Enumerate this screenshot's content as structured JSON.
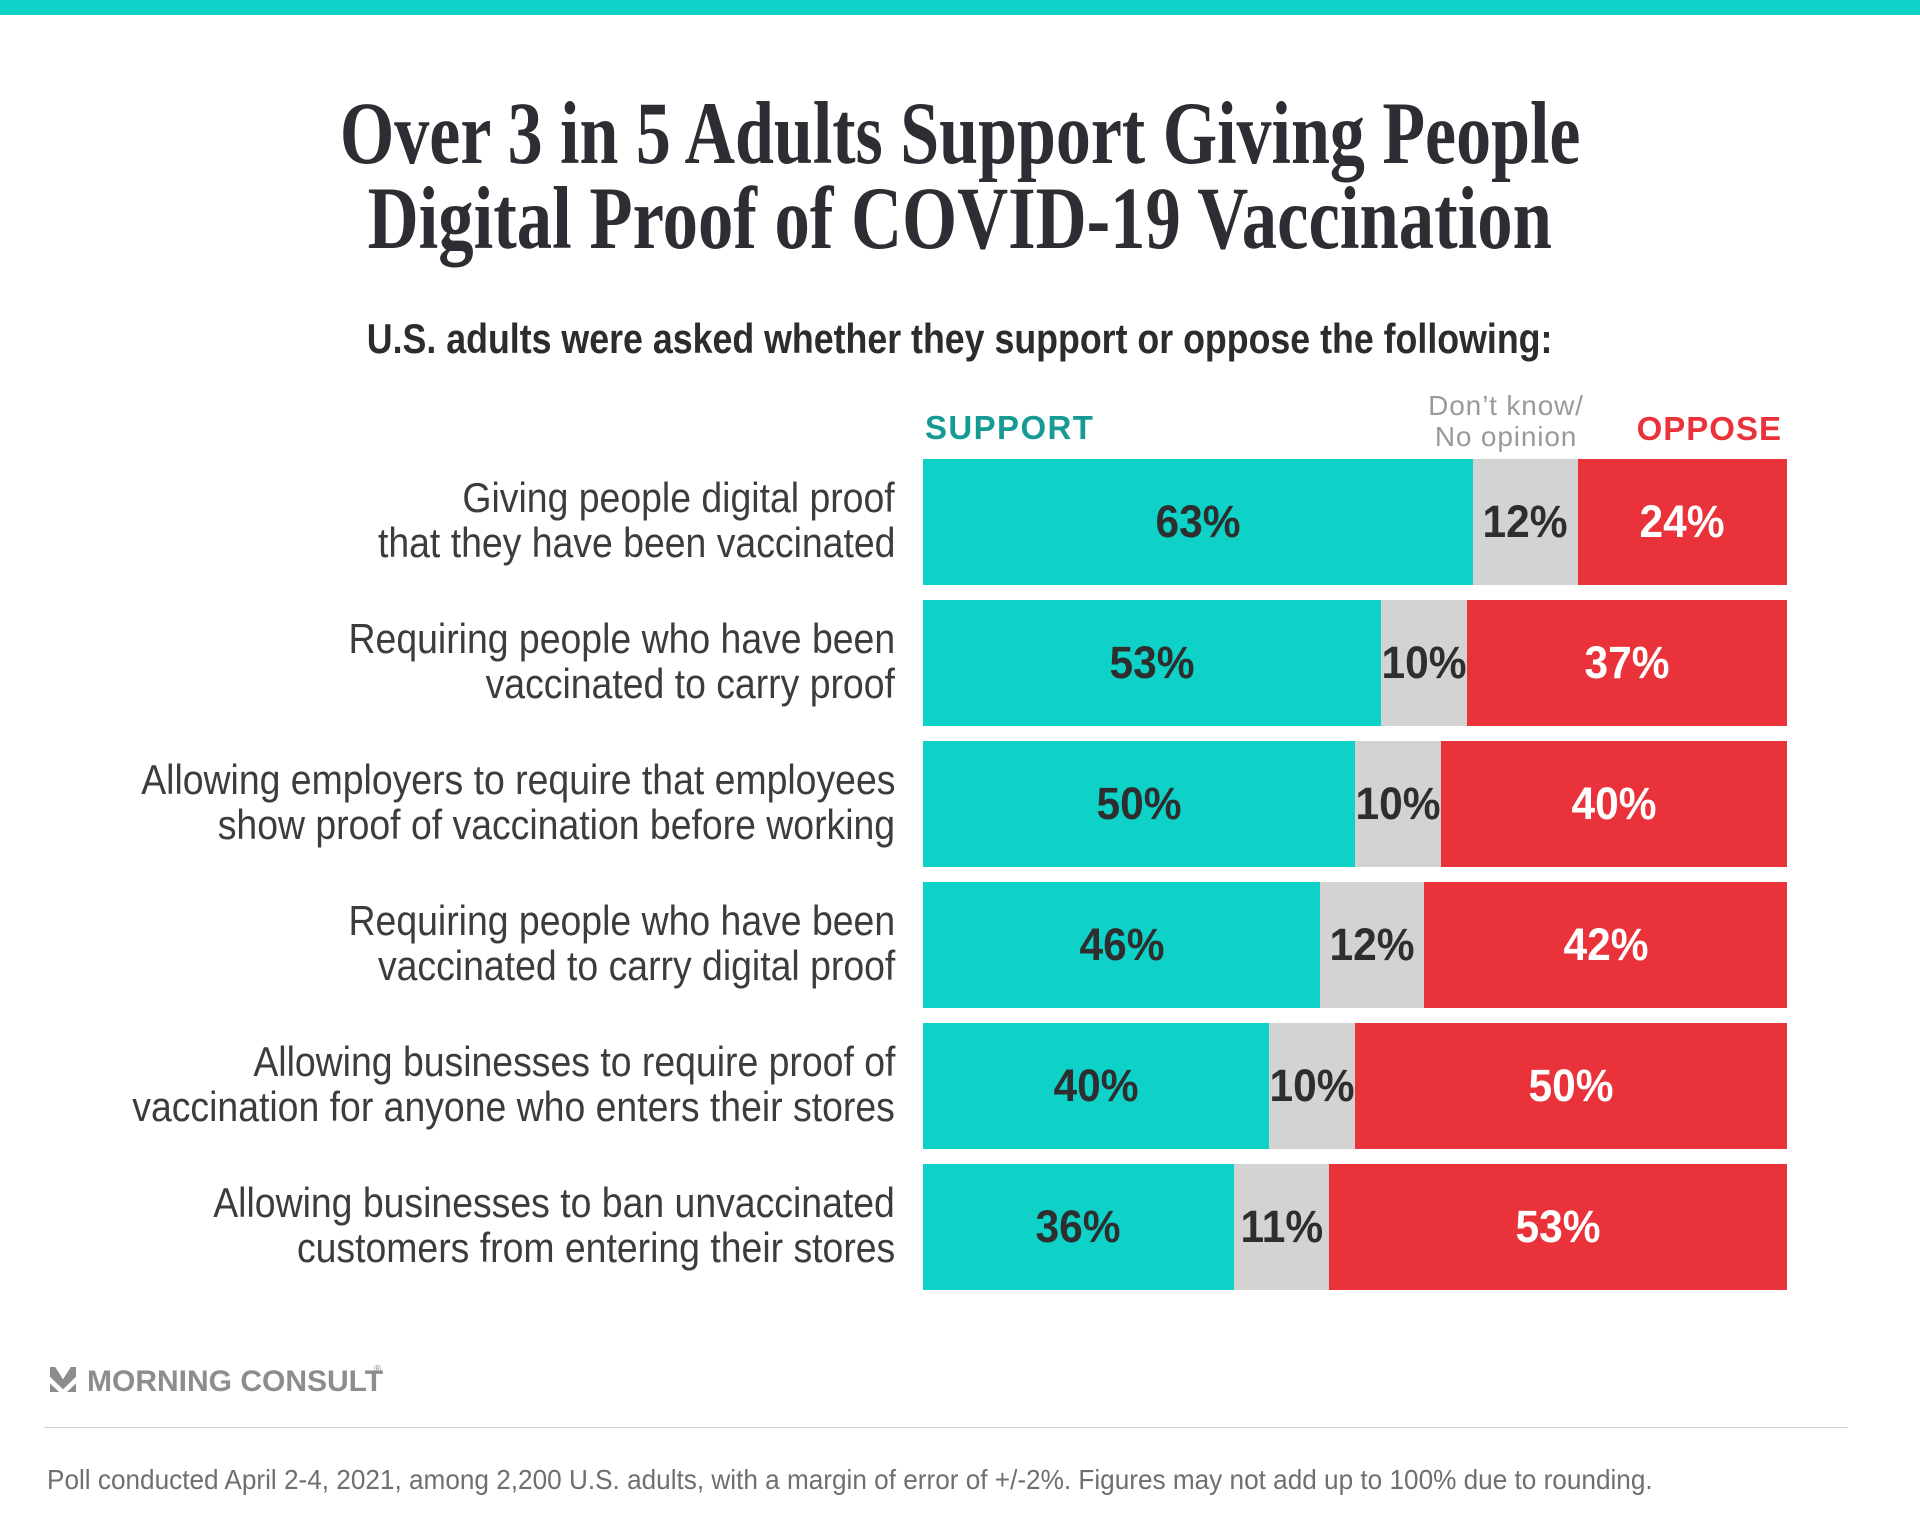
{
  "page": {
    "background": "#FFFFFF"
  },
  "colors": {
    "teal": "#0ED2C8",
    "teal_dark": "#169B94",
    "red": "#E93239",
    "gray": "#D3D3D3",
    "title_text": "#2D2E33",
    "subtitle_text": "#2C2C2E",
    "label_text": "#3C3C3C",
    "value_dark": "#2E2E2E",
    "value_light": "#FFFFFF",
    "dontknow_text": "#9A9A9A",
    "footer_text": "#6F6F6F",
    "logo_gray": "#8D8D8D",
    "divider": "#CDCDCD"
  },
  "header": {
    "title_line1": "Over 3 in 5 Adults Support Giving People",
    "title_line2": "Digital Proof of COVID-19 Vaccination",
    "subtitle": "U.S. adults were asked whether they support or oppose the following:"
  },
  "chart_data": {
    "type": "bar",
    "orientation": "horizontal",
    "stacked": true,
    "normalized_to_row_sum": true,
    "legend": {
      "support": "SUPPORT",
      "dontknow_line1": "Don’t know/",
      "dontknow_line2": "No opinion",
      "oppose": "OPPOSE"
    },
    "series_names": [
      "Support",
      "Don’t know/No opinion",
      "Oppose"
    ],
    "value_suffix": "%",
    "rows": [
      {
        "label_line1": "Giving people digital proof",
        "label_line2": "that they have been vaccinated",
        "support": 63,
        "dontknow": 12,
        "oppose": 24
      },
      {
        "label_line1": "Requiring people who have been",
        "label_line2": "vaccinated to carry proof",
        "support": 53,
        "dontknow": 10,
        "oppose": 37
      },
      {
        "label_line1": "Allowing employers to require that employees",
        "label_line2": "show proof of vaccination before working",
        "support": 50,
        "dontknow": 10,
        "oppose": 40
      },
      {
        "label_line1": "Requiring people who have been",
        "label_line2": "vaccinated to carry digital proof",
        "support": 46,
        "dontknow": 12,
        "oppose": 42
      },
      {
        "label_line1": "Allowing businesses to require proof of",
        "label_line2": "vaccination for anyone who enters their stores",
        "support": 40,
        "dontknow": 10,
        "oppose": 50
      },
      {
        "label_line1": "Allowing businesses to ban unvaccinated",
        "label_line2": "customers from entering their stores",
        "support": 36,
        "dontknow": 11,
        "oppose": 53
      }
    ]
  },
  "footer": {
    "brand": "MORNING CONSULT",
    "registered": "®",
    "note": "Poll conducted April 2-4, 2021, among 2,200 U.S. adults, with a margin of error of +/-2%. Figures may not add up to 100% due to rounding."
  }
}
